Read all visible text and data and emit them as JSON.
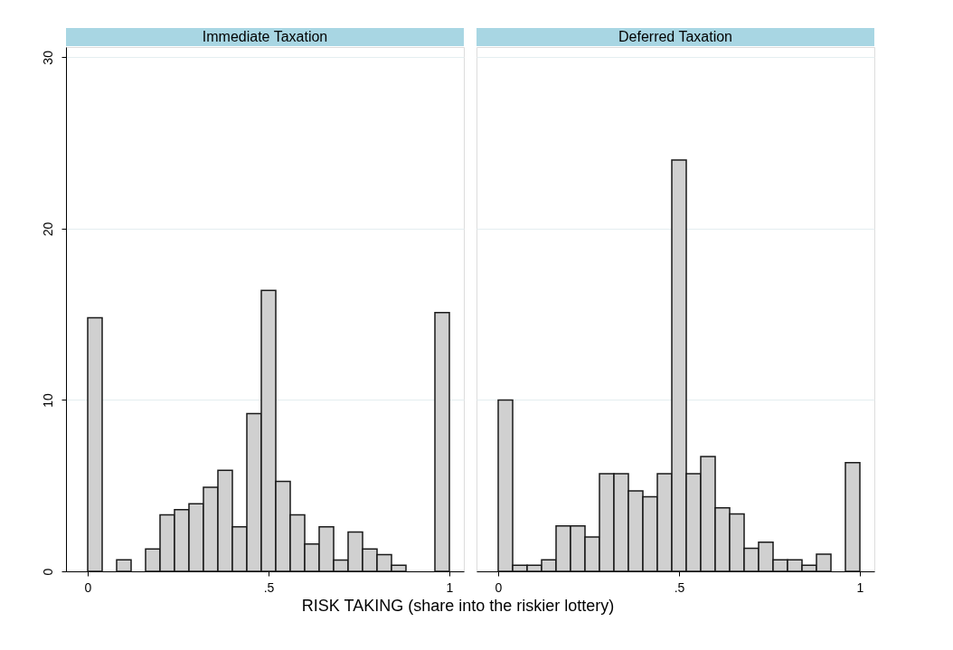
{
  "chart_data": [
    {
      "type": "histogram",
      "title": "Immediate Taxation",
      "xlabel": "RISK TAKING (share into the riskier lottery)",
      "color": "#d0d0d0",
      "bins": [
        0,
        0.04,
        0.08,
        0.12,
        0.16,
        0.2,
        0.24,
        0.28,
        0.32,
        0.36,
        0.4,
        0.44,
        0.48,
        0.52,
        0.56,
        0.6,
        0.64,
        0.68,
        0.72,
        0.76,
        0.8,
        0.84,
        0.88,
        0.92,
        0.96,
        1
      ],
      "values": [
        14.8,
        null,
        0.67,
        null,
        1.3,
        3.3,
        3.6,
        3.95,
        4.9,
        5.9,
        2.6,
        9.2,
        16.4,
        5.25,
        3.3,
        1.6,
        2.6,
        0.66,
        2.3,
        1.3,
        0.97,
        0.35,
        null,
        null,
        15.1
      ],
      "xlim": [
        -0.06,
        1.04
      ],
      "xticks": [
        0,
        {
          "value": 0.5,
          "label": ".5"
        },
        1
      ],
      "ylim": [
        0,
        30.6
      ],
      "yticks": [
        0,
        10,
        20,
        30
      ],
      "grid": "y"
    },
    {
      "type": "histogram",
      "title": "Deferred Taxation",
      "color": "#d0d0d0",
      "bins": [
        0,
        0.04,
        0.08,
        0.12,
        0.16,
        0.2,
        0.24,
        0.28,
        0.32,
        0.36,
        0.4,
        0.44,
        0.48,
        0.52,
        0.56,
        0.6,
        0.64,
        0.68,
        0.72,
        0.76,
        0.8,
        0.84,
        0.88,
        0.92,
        0.96,
        1
      ],
      "values": [
        10,
        0.35,
        0.35,
        0.67,
        2.65,
        2.65,
        2,
        5.7,
        5.7,
        4.7,
        4.35,
        5.7,
        24,
        5.7,
        6.7,
        3.7,
        3.35,
        1.35,
        1.7,
        0.67,
        0.67,
        0.35,
        1,
        null,
        6.35
      ],
      "xlim": [
        -0.06,
        1.04
      ],
      "xticks": [
        0,
        {
          "value": 0.5,
          "label": ".5"
        },
        1
      ],
      "ylim": [
        0,
        30.6
      ],
      "yticks": [
        0,
        10,
        20,
        30
      ],
      "grid": "y",
      "tick_labels": "x"
    }
  ]
}
